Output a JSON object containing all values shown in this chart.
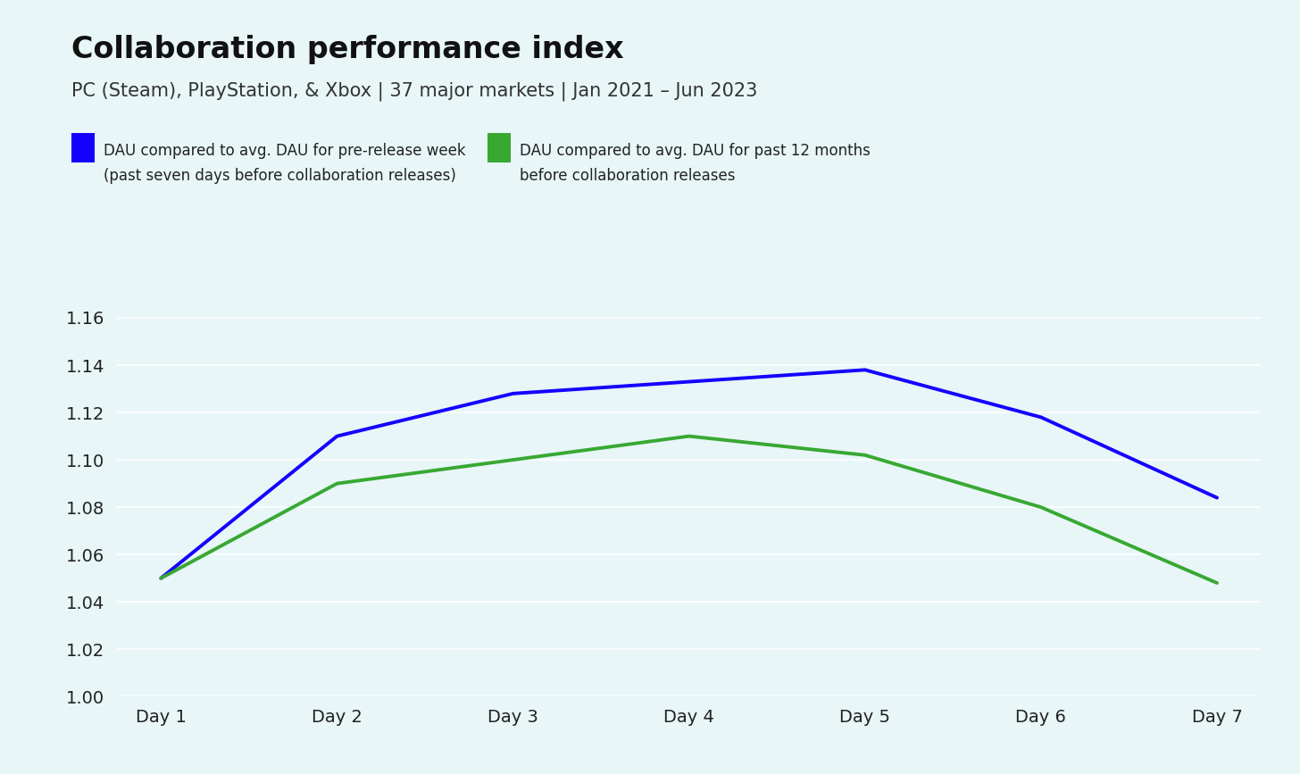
{
  "title": "Collaboration performance index",
  "subtitle": "PC (Steam), PlayStation, & Xbox | 37 major markets | Jan 2021 – Jun 2023",
  "x_labels": [
    "Day 1",
    "Day 2",
    "Day 3",
    "Day 4",
    "Day 5",
    "Day 6",
    "Day 7"
  ],
  "blue_line": [
    1.05,
    1.11,
    1.128,
    1.133,
    1.138,
    1.118,
    1.084
  ],
  "green_line": [
    1.05,
    1.09,
    1.1,
    1.11,
    1.102,
    1.08,
    1.048
  ],
  "blue_color": "#1400ff",
  "green_color": "#38a832",
  "background_color": "#e8f6f8",
  "ylim": [
    1.0,
    1.17
  ],
  "yticks": [
    1.0,
    1.02,
    1.04,
    1.06,
    1.08,
    1.1,
    1.12,
    1.14,
    1.16
  ],
  "legend_blue_label1": "DAU compared to avg. DAU for pre-release week",
  "legend_blue_label2": "(past seven days before collaboration releases)",
  "legend_green_label1": "DAU compared to avg. DAU for past 12 months",
  "legend_green_label2": "before collaboration releases",
  "title_fontsize": 24,
  "subtitle_fontsize": 15,
  "tick_fontsize": 14,
  "legend_fontsize": 12,
  "line_width": 2.8
}
